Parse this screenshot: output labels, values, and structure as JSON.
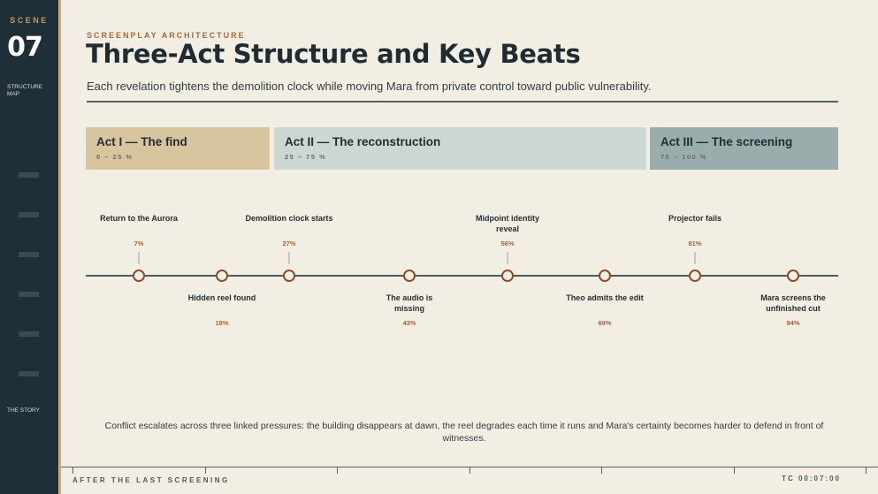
{
  "sidebar": {
    "scene_label": "SCENE",
    "scene_number": "07",
    "section_label": "STRUCTURE MAP",
    "story_label": "THE STORY"
  },
  "header": {
    "eyebrow": "SCREENPLAY ARCHITECTURE",
    "title": "Three-Act Structure and Key Beats",
    "subtitle": "Each revelation tightens the demolition clock while moving Mara from private control toward public vulnerability."
  },
  "acts": [
    {
      "title": "Act I — The find",
      "range": "0 – 25 %"
    },
    {
      "title": "Act II — The reconstruction",
      "range": "25 – 75 %"
    },
    {
      "title": "Act III — The screening",
      "range": "75 – 100 %"
    }
  ],
  "beats": [
    {
      "label": "Return to the Aurora",
      "pct": "7%",
      "position": "above"
    },
    {
      "label": "Hidden reel found",
      "pct": "18%",
      "position": "below"
    },
    {
      "label": "Demolition clock starts",
      "pct": "27%",
      "position": "above"
    },
    {
      "label": "The audio is missing",
      "pct": "43%",
      "position": "below"
    },
    {
      "label": "Midpoint identity reveal",
      "pct": "56%",
      "position": "above"
    },
    {
      "label": "Theo admits the edit",
      "pct": "69%",
      "position": "below"
    },
    {
      "label": "Projector fails",
      "pct": "81%",
      "position": "above"
    },
    {
      "label": "Mara screens the unfinished cut",
      "pct": "94%",
      "position": "below"
    }
  ],
  "summary": "Conflict escalates across three linked pressures: the building disappears at dawn, the reel degrades each time it runs and Mara's certainty becomes harder to defend in front of witnesses.",
  "footer": {
    "title": "AFTER THE LAST SCREENING",
    "timecode": "TC 00:07:00"
  },
  "colors": {
    "sidebar": "#1f2f37",
    "background": "#f3eee4",
    "accent": "#a06b3c",
    "act1": "#d9c4a0",
    "act2": "#ccd6d2",
    "act3": "#99aeac"
  }
}
